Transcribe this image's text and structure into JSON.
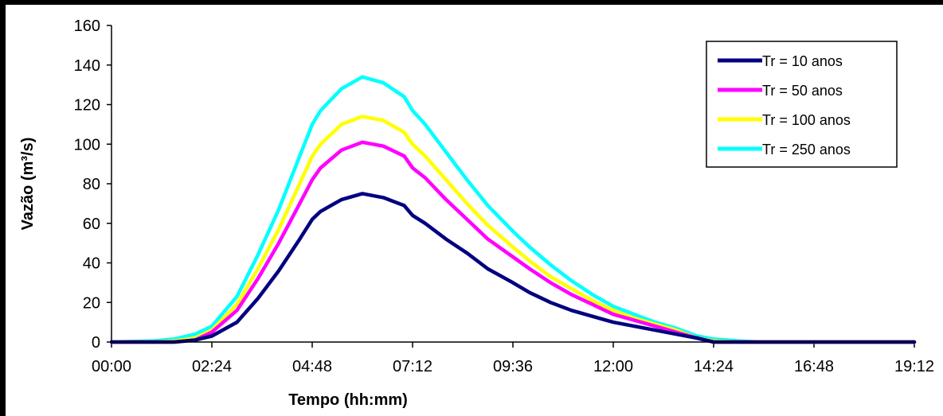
{
  "chart_data": {
    "type": "line",
    "title": "",
    "xlabel": "Tempo (hh:mm)",
    "ylabel": "Vazão (m³/s)",
    "x_unit": "hh:mm",
    "xlim": [
      "00:00",
      "19:12"
    ],
    "ylim": [
      0,
      160
    ],
    "x_ticks": [
      "00:00",
      "02:24",
      "04:48",
      "07:12",
      "09:36",
      "12:00",
      "14:24",
      "16:48",
      "19:12"
    ],
    "y_ticks": [
      "0",
      "20",
      "40",
      "60",
      "80",
      "100",
      "120",
      "140",
      "160"
    ],
    "grid": false,
    "legend_position": "top-right",
    "x": [
      "00:00",
      "01:00",
      "01:30",
      "02:00",
      "02:24",
      "03:00",
      "03:30",
      "04:00",
      "04:30",
      "04:48",
      "05:00",
      "05:30",
      "06:00",
      "06:30",
      "07:00",
      "07:12",
      "07:30",
      "08:00",
      "08:30",
      "09:00",
      "09:36",
      "10:00",
      "10:30",
      "11:00",
      "11:30",
      "12:00",
      "12:30",
      "13:00",
      "13:30",
      "14:00",
      "14:24",
      "15:00",
      "15:30",
      "16:00",
      "16:48",
      "19:12"
    ],
    "series": [
      {
        "name": "Tr = 10 anos",
        "color": "#000080",
        "values": [
          0,
          0,
          0,
          1,
          3,
          10,
          22,
          36,
          52,
          62,
          66,
          72,
          75,
          73,
          69,
          64,
          60,
          52,
          45,
          37,
          30,
          25,
          20,
          16,
          13,
          10,
          8,
          6,
          4,
          2,
          0,
          0,
          0,
          0,
          0,
          0
        ]
      },
      {
        "name": "Tr = 50 anos",
        "color": "#ff00ff",
        "values": [
          0,
          0,
          0,
          1,
          5,
          16,
          32,
          50,
          70,
          82,
          88,
          97,
          101,
          99,
          94,
          88,
          83,
          72,
          62,
          52,
          43,
          37,
          30,
          24,
          19,
          14,
          11,
          8,
          5,
          2,
          0,
          0,
          0,
          0,
          0,
          0
        ]
      },
      {
        "name": "Tr = 100 anos",
        "color": "#ffff00",
        "values": [
          0,
          0,
          0.5,
          2,
          6,
          19,
          37,
          57,
          80,
          94,
          100,
          110,
          114,
          112,
          106,
          100,
          94,
          82,
          70,
          59,
          48,
          41,
          33,
          27,
          21,
          16,
          12,
          9,
          6,
          2,
          0.5,
          0,
          0,
          0,
          0,
          0
        ]
      },
      {
        "name": "Tr = 250 anos",
        "color": "#00ffff",
        "values": [
          0,
          0.5,
          1.5,
          4,
          8,
          23,
          44,
          67,
          94,
          110,
          117,
          128,
          134,
          131,
          124,
          117,
          110,
          96,
          82,
          69,
          56,
          48,
          39,
          31,
          24,
          18,
          14,
          10,
          7,
          3,
          1.5,
          0.5,
          0,
          0,
          0,
          0
        ]
      }
    ]
  }
}
